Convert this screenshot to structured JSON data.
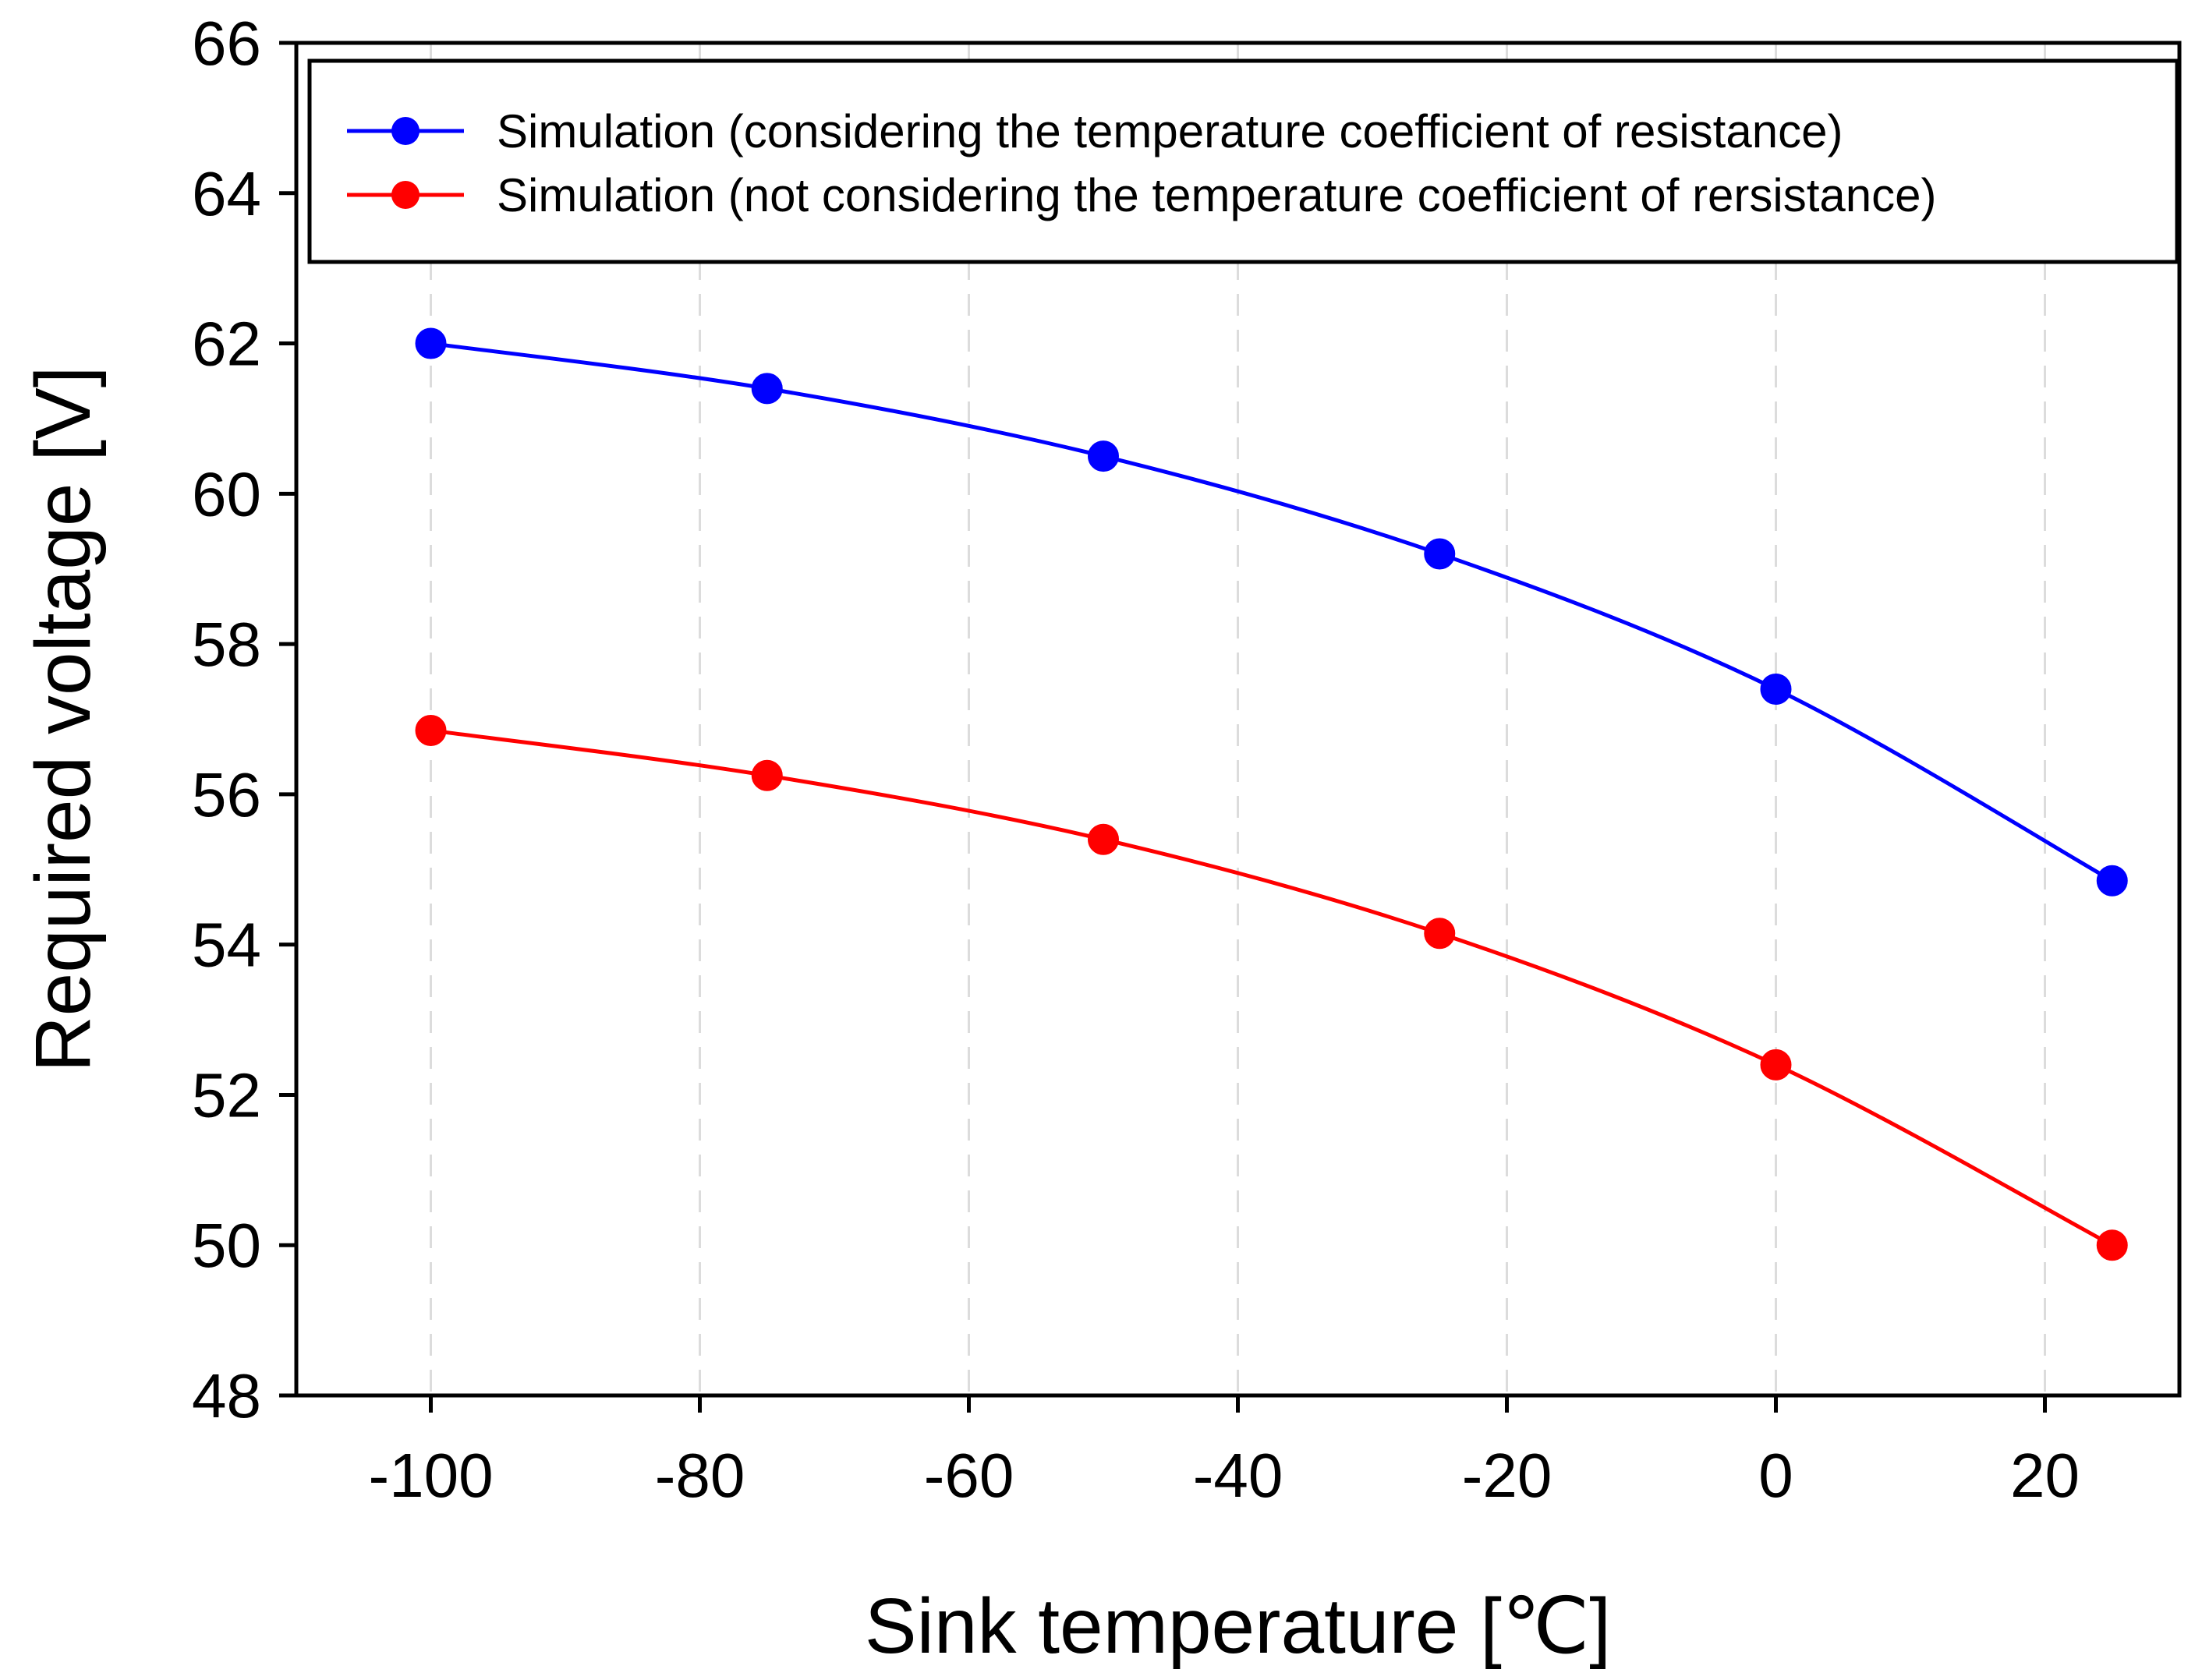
{
  "chart_data": {
    "type": "line",
    "title": "",
    "xlabel": "Sink temperature [℃]",
    "ylabel": "Required voltage [V]",
    "xlim": [
      -110,
      30
    ],
    "ylim": [
      48,
      66
    ],
    "x_ticks": [
      -100,
      -80,
      -60,
      -40,
      -20,
      0,
      20
    ],
    "y_ticks": [
      48,
      50,
      52,
      54,
      56,
      58,
      60,
      62,
      64,
      66
    ],
    "x_tick_labels": [
      "-100",
      "-80",
      "-60",
      "-40",
      "-20",
      "0",
      "20"
    ],
    "y_tick_labels": [
      "48",
      "50",
      "52",
      "54",
      "56",
      "58",
      "60",
      "62",
      "64",
      "66"
    ],
    "grid": "vertical dashed",
    "legend_position": "top",
    "x": [
      -100,
      -75,
      -50,
      -25,
      0,
      25
    ],
    "series": [
      {
        "name": "Simulation (considering the temperature coefficient of resistance)",
        "color": "#0000ff",
        "values": [
          62.0,
          61.4,
          60.5,
          59.2,
          57.4,
          54.85
        ]
      },
      {
        "name": "Simulation (not considering the temperature coefficient of rersistance)",
        "color": "#ff0000",
        "values": [
          56.85,
          56.25,
          55.4,
          54.15,
          52.4,
          50.0
        ]
      }
    ]
  }
}
